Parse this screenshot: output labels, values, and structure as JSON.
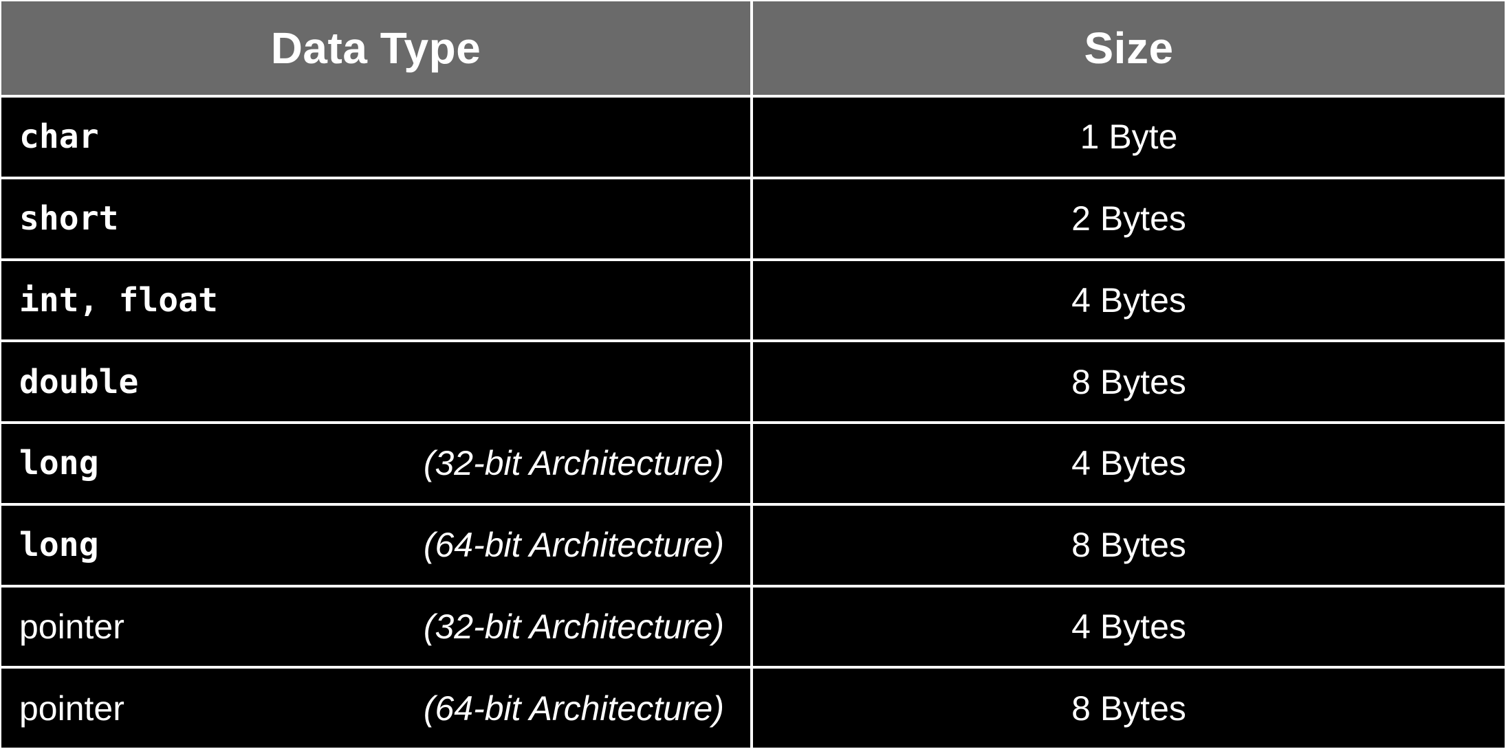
{
  "headers": {
    "data_type": "Data Type",
    "size": "Size"
  },
  "rows": [
    {
      "type": "char",
      "type_style": "code",
      "arch": "",
      "size": "1 Byte"
    },
    {
      "type": "short",
      "type_style": "code",
      "arch": "",
      "size": "2 Bytes"
    },
    {
      "type": "int, float",
      "type_style": "code",
      "arch": "",
      "size": "4 Bytes"
    },
    {
      "type": "double",
      "type_style": "code",
      "arch": "",
      "size": "8 Bytes"
    },
    {
      "type": "long",
      "type_style": "code",
      "arch": "(32-bit Architecture)",
      "size": "4 Bytes"
    },
    {
      "type": "long",
      "type_style": "code",
      "arch": "(64-bit Architecture)",
      "size": "8 Bytes"
    },
    {
      "type": "pointer",
      "type_style": "plain",
      "arch": "(32-bit Architecture)",
      "size": "4 Bytes"
    },
    {
      "type": "pointer",
      "type_style": "plain",
      "arch": "(64-bit Architecture)",
      "size": "8 Bytes"
    }
  ],
  "colors": {
    "header_background": "#6a6a6a",
    "row_background": "#000000",
    "text": "#ffffff",
    "grid_lines": "#ffffff"
  }
}
